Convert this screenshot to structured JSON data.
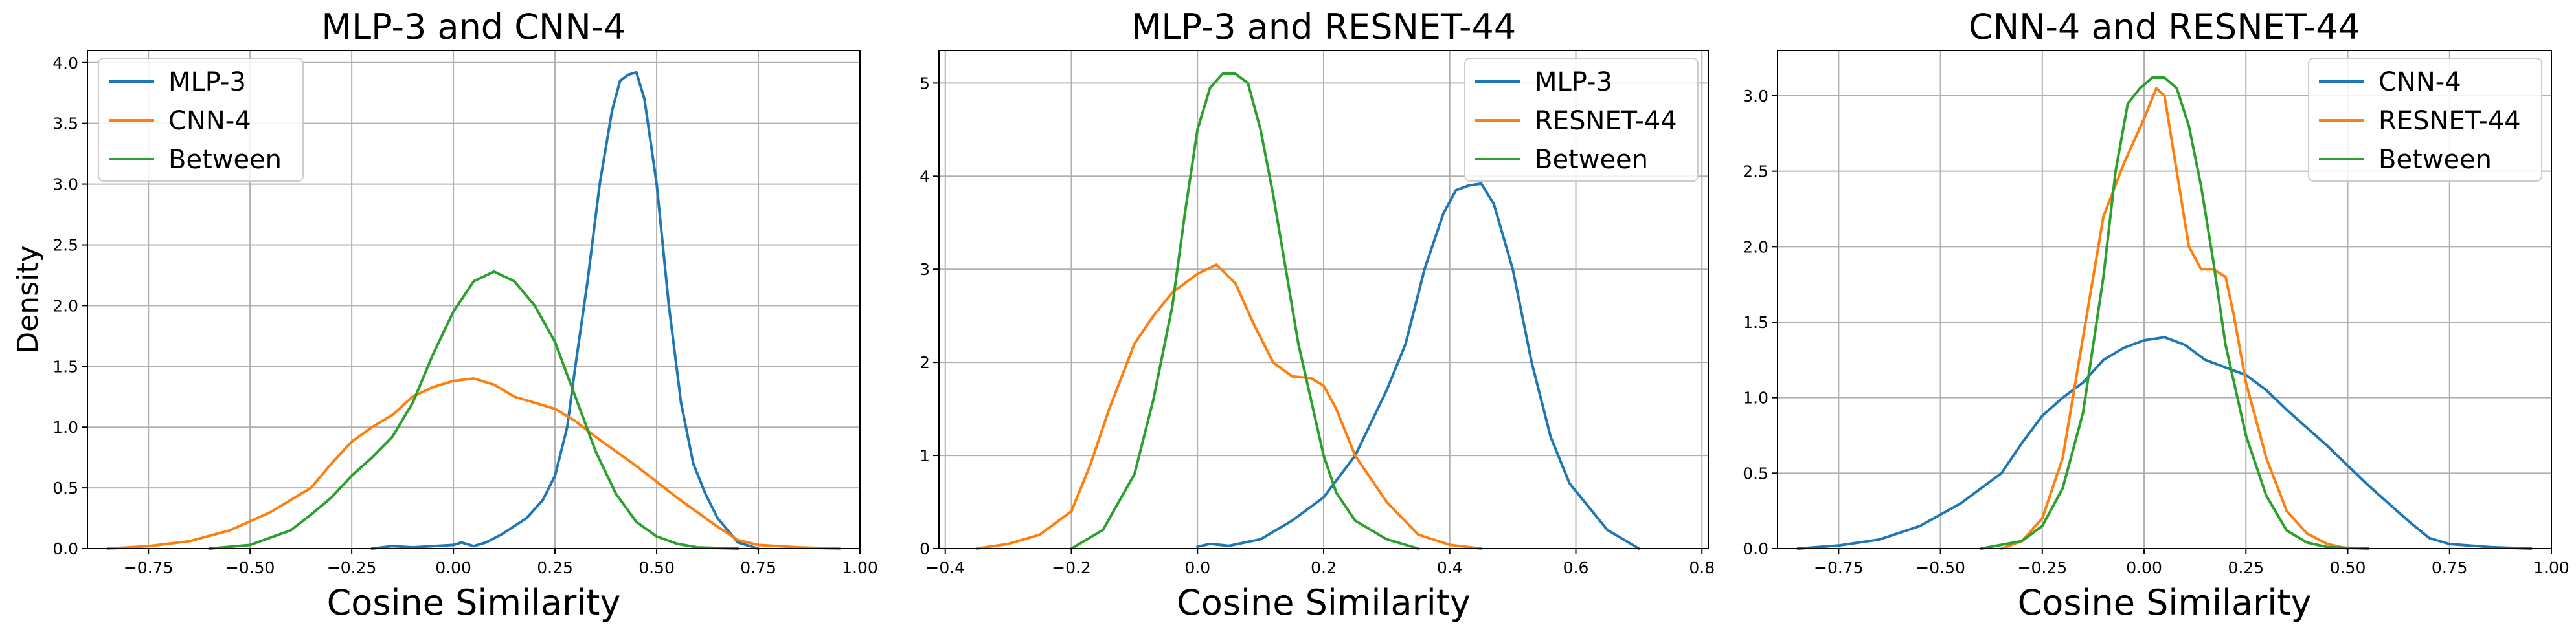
{
  "colors": {
    "blue": "#1f77b4",
    "orange": "#ff7f0e",
    "green": "#2ca02c"
  },
  "chart_data": [
    {
      "type": "line",
      "title": "MLP-3 and CNN-4",
      "xlabel": "Cosine Similarity",
      "ylabel": "Density",
      "xlim": [
        -0.9,
        1.0
      ],
      "ylim": [
        0,
        4.1
      ],
      "xticks": [
        -0.75,
        -0.5,
        -0.25,
        0.0,
        0.25,
        0.5,
        0.75,
        1.0
      ],
      "xtick_labels": [
        "−0.75",
        "−0.50",
        "−0.25",
        "0.00",
        "0.25",
        "0.50",
        "0.75",
        "1.00"
      ],
      "yticks": [
        0,
        0.5,
        1.0,
        1.5,
        2.0,
        2.5,
        3.0,
        3.5,
        4.0
      ],
      "ytick_labels": [
        "0.0",
        "0.5",
        "1.0",
        "1.5",
        "2.0",
        "2.5",
        "3.0",
        "3.5",
        "4.0"
      ],
      "grid": true,
      "legend_position": "upper-left",
      "series": [
        {
          "name": "MLP-3",
          "color": "#1f77b4",
          "x": [
            -0.2,
            -0.15,
            -0.1,
            -0.05,
            0.0,
            0.02,
            0.05,
            0.08,
            0.12,
            0.18,
            0.22,
            0.25,
            0.28,
            0.3,
            0.33,
            0.36,
            0.39,
            0.41,
            0.43,
            0.45,
            0.47,
            0.5,
            0.53,
            0.56,
            0.59,
            0.62,
            0.65,
            0.7,
            0.75
          ],
          "y": [
            0.0,
            0.02,
            0.01,
            0.02,
            0.03,
            0.05,
            0.02,
            0.05,
            0.12,
            0.25,
            0.4,
            0.6,
            1.0,
            1.5,
            2.2,
            3.0,
            3.6,
            3.85,
            3.9,
            3.92,
            3.7,
            3.0,
            2.0,
            1.2,
            0.7,
            0.45,
            0.25,
            0.05,
            0.0
          ]
        },
        {
          "name": "CNN-4",
          "color": "#ff7f0e",
          "x": [
            -0.85,
            -0.75,
            -0.65,
            -0.55,
            -0.45,
            -0.35,
            -0.3,
            -0.25,
            -0.2,
            -0.15,
            -0.1,
            -0.05,
            0.0,
            0.05,
            0.1,
            0.15,
            0.2,
            0.25,
            0.3,
            0.35,
            0.4,
            0.45,
            0.5,
            0.55,
            0.6,
            0.65,
            0.7,
            0.75,
            0.85,
            0.95
          ],
          "y": [
            0.0,
            0.02,
            0.06,
            0.15,
            0.3,
            0.5,
            0.7,
            0.88,
            1.0,
            1.1,
            1.25,
            1.33,
            1.38,
            1.4,
            1.35,
            1.25,
            1.2,
            1.15,
            1.05,
            0.92,
            0.8,
            0.68,
            0.55,
            0.42,
            0.3,
            0.18,
            0.07,
            0.03,
            0.01,
            0.0
          ]
        },
        {
          "name": "Between",
          "color": "#2ca02c",
          "x": [
            -0.6,
            -0.5,
            -0.4,
            -0.35,
            -0.3,
            -0.25,
            -0.2,
            -0.15,
            -0.1,
            -0.05,
            0.0,
            0.05,
            0.1,
            0.15,
            0.2,
            0.25,
            0.3,
            0.35,
            0.4,
            0.45,
            0.5,
            0.55,
            0.6,
            0.7
          ],
          "y": [
            0.0,
            0.03,
            0.15,
            0.28,
            0.42,
            0.6,
            0.75,
            0.92,
            1.2,
            1.6,
            1.95,
            2.2,
            2.28,
            2.2,
            2.0,
            1.7,
            1.25,
            0.8,
            0.45,
            0.22,
            0.1,
            0.04,
            0.01,
            0.0
          ]
        }
      ]
    },
    {
      "type": "line",
      "title": "MLP-3 and RESNET-44",
      "xlabel": "Cosine Similarity",
      "ylabel": "",
      "xlim": [
        -0.41,
        0.81
      ],
      "ylim": [
        0,
        5.35
      ],
      "xticks": [
        -0.4,
        -0.2,
        0.0,
        0.2,
        0.4,
        0.6,
        0.8
      ],
      "xtick_labels": [
        "−0.4",
        "−0.2",
        "0.0",
        "0.2",
        "0.4",
        "0.6",
        "0.8"
      ],
      "yticks": [
        0,
        1,
        2,
        3,
        4,
        5
      ],
      "ytick_labels": [
        "0",
        "1",
        "2",
        "3",
        "4",
        "5"
      ],
      "grid": true,
      "legend_position": "upper-right",
      "series": [
        {
          "name": "MLP-3",
          "color": "#1f77b4",
          "x": [
            0.0,
            0.02,
            0.05,
            0.1,
            0.15,
            0.2,
            0.25,
            0.3,
            0.33,
            0.36,
            0.39,
            0.41,
            0.43,
            0.45,
            0.47,
            0.5,
            0.53,
            0.56,
            0.59,
            0.62,
            0.65,
            0.7
          ],
          "y": [
            0.02,
            0.05,
            0.03,
            0.1,
            0.3,
            0.55,
            1.0,
            1.7,
            2.2,
            3.0,
            3.6,
            3.85,
            3.9,
            3.92,
            3.7,
            3.0,
            2.0,
            1.2,
            0.7,
            0.45,
            0.2,
            0.0
          ]
        },
        {
          "name": "RESNET-44",
          "color": "#ff7f0e",
          "x": [
            -0.35,
            -0.3,
            -0.25,
            -0.2,
            -0.17,
            -0.14,
            -0.1,
            -0.07,
            -0.04,
            0.0,
            0.03,
            0.06,
            0.09,
            0.12,
            0.15,
            0.18,
            0.2,
            0.22,
            0.25,
            0.3,
            0.35,
            0.4,
            0.45
          ],
          "y": [
            0.0,
            0.05,
            0.15,
            0.4,
            0.9,
            1.5,
            2.2,
            2.5,
            2.75,
            2.95,
            3.05,
            2.85,
            2.4,
            2.0,
            1.85,
            1.83,
            1.75,
            1.5,
            1.0,
            0.5,
            0.15,
            0.04,
            0.0
          ]
        },
        {
          "name": "Between",
          "color": "#2ca02c",
          "x": [
            -0.2,
            -0.15,
            -0.1,
            -0.07,
            -0.04,
            -0.02,
            0.0,
            0.02,
            0.04,
            0.06,
            0.08,
            0.1,
            0.12,
            0.14,
            0.16,
            0.18,
            0.2,
            0.22,
            0.25,
            0.3,
            0.35
          ],
          "y": [
            0.0,
            0.2,
            0.8,
            1.6,
            2.6,
            3.6,
            4.5,
            4.95,
            5.1,
            5.1,
            5.0,
            4.5,
            3.8,
            3.0,
            2.2,
            1.6,
            1.0,
            0.6,
            0.3,
            0.1,
            0.0
          ]
        }
      ]
    },
    {
      "type": "line",
      "title": "CNN-4 and RESNET-44",
      "xlabel": "Cosine Similarity",
      "ylabel": "",
      "xlim": [
        -0.9,
        1.0
      ],
      "ylim": [
        0,
        3.3
      ],
      "xticks": [
        -0.75,
        -0.5,
        -0.25,
        0.0,
        0.25,
        0.5,
        0.75,
        1.0
      ],
      "xtick_labels": [
        "−0.75",
        "−0.50",
        "−0.25",
        "0.00",
        "0.25",
        "0.50",
        "0.75",
        "1.00"
      ],
      "yticks": [
        0,
        0.5,
        1.0,
        1.5,
        2.0,
        2.5,
        3.0
      ],
      "ytick_labels": [
        "0.0",
        "0.5",
        "1.0",
        "1.5",
        "2.0",
        "2.5",
        "3.0"
      ],
      "grid": true,
      "legend_position": "upper-right",
      "series": [
        {
          "name": "CNN-4",
          "color": "#1f77b4",
          "x": [
            -0.85,
            -0.75,
            -0.65,
            -0.55,
            -0.45,
            -0.35,
            -0.3,
            -0.25,
            -0.2,
            -0.15,
            -0.1,
            -0.05,
            0.0,
            0.05,
            0.1,
            0.15,
            0.2,
            0.25,
            0.3,
            0.35,
            0.4,
            0.45,
            0.5,
            0.55,
            0.6,
            0.65,
            0.7,
            0.75,
            0.85,
            0.95
          ],
          "y": [
            0.0,
            0.02,
            0.06,
            0.15,
            0.3,
            0.5,
            0.7,
            0.88,
            1.0,
            1.1,
            1.25,
            1.33,
            1.38,
            1.4,
            1.35,
            1.25,
            1.2,
            1.15,
            1.05,
            0.92,
            0.8,
            0.68,
            0.55,
            0.42,
            0.3,
            0.18,
            0.07,
            0.03,
            0.01,
            0.0
          ]
        },
        {
          "name": "RESNET-44",
          "color": "#ff7f0e",
          "x": [
            -0.35,
            -0.3,
            -0.25,
            -0.2,
            -0.15,
            -0.1,
            -0.05,
            0.0,
            0.03,
            0.05,
            0.08,
            0.11,
            0.14,
            0.17,
            0.2,
            0.22,
            0.25,
            0.3,
            0.35,
            0.4,
            0.45,
            0.5
          ],
          "y": [
            0.0,
            0.05,
            0.2,
            0.6,
            1.4,
            2.2,
            2.55,
            2.85,
            3.05,
            3.0,
            2.5,
            2.0,
            1.85,
            1.85,
            1.8,
            1.55,
            1.1,
            0.6,
            0.25,
            0.1,
            0.03,
            0.0
          ]
        },
        {
          "name": "Between",
          "color": "#2ca02c",
          "x": [
            -0.4,
            -0.3,
            -0.25,
            -0.2,
            -0.15,
            -0.1,
            -0.07,
            -0.04,
            -0.01,
            0.02,
            0.05,
            0.08,
            0.11,
            0.14,
            0.17,
            0.2,
            0.25,
            0.3,
            0.35,
            0.4,
            0.45,
            0.55
          ],
          "y": [
            0.0,
            0.05,
            0.15,
            0.4,
            0.9,
            1.8,
            2.5,
            2.95,
            3.05,
            3.12,
            3.12,
            3.05,
            2.8,
            2.4,
            1.9,
            1.35,
            0.75,
            0.35,
            0.12,
            0.04,
            0.01,
            0.0
          ]
        }
      ]
    }
  ]
}
